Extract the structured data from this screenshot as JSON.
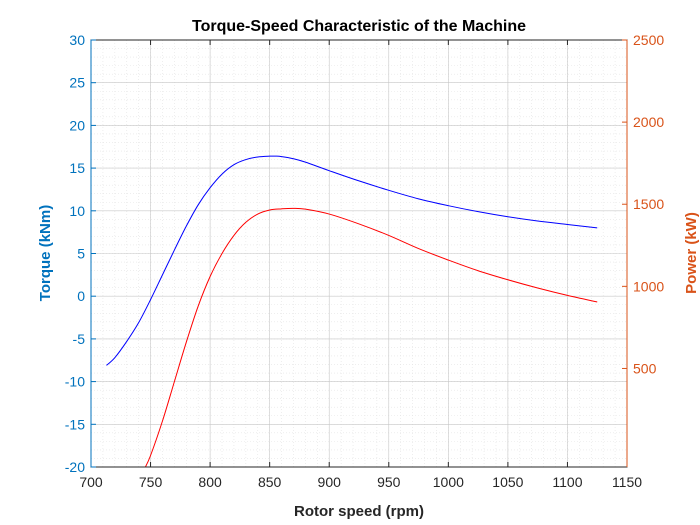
{
  "chart_data": {
    "type": "line",
    "title": "Torque-Speed Characteristic of the Machine",
    "xlabel": "Rotor speed (rpm)",
    "ylabel_left": "Torque (kNm)",
    "ylabel_right": "Power (kW)",
    "xlim": [
      700,
      1150
    ],
    "ylim_left": [
      -20,
      30
    ],
    "ylim_right": [
      -100,
      2500
    ],
    "x_ticks": [
      "700",
      "750",
      "800",
      "850",
      "900",
      "950",
      "1000",
      "1050",
      "1100",
      "1150"
    ],
    "y_left_ticks": [
      "-20",
      "-15",
      "-10",
      "-5",
      "0",
      "5",
      "10",
      "15",
      "20",
      "25",
      "30"
    ],
    "y_right_ticks": [
      "500",
      "1000",
      "1500",
      "2000",
      "2500"
    ],
    "grid": true,
    "colors": {
      "left_axis": "#0072BD",
      "right_axis": "#D95319",
      "torque_line": "#0000FF",
      "power_line": "#FF0000",
      "grid": "#c8c8c8"
    },
    "series": [
      {
        "axis": "left",
        "x": [
          713,
          720,
          730,
          740,
          750,
          760,
          770,
          780,
          790,
          800,
          810,
          820,
          830,
          840,
          850,
          855,
          860,
          870,
          880,
          900,
          925,
          950,
          975,
          1000,
          1025,
          1050,
          1075,
          1100,
          1125
        ],
        "y": [
          -8.1,
          -7.2,
          -5.3,
          -3.1,
          -0.4,
          2.5,
          5.4,
          8.2,
          10.7,
          12.7,
          14.3,
          15.4,
          16.0,
          16.3,
          16.4,
          16.4,
          16.35,
          16.1,
          15.7,
          14.7,
          13.5,
          12.4,
          11.4,
          10.6,
          9.9,
          9.3,
          8.8,
          8.4,
          8.0
        ]
      },
      {
        "axis": "right",
        "x": [
          745,
          750,
          760,
          770,
          780,
          790,
          800,
          810,
          820,
          830,
          840,
          850,
          860,
          870,
          880,
          900,
          925,
          950,
          975,
          1000,
          1025,
          1050,
          1075,
          1100,
          1125
        ],
        "y": [
          -110,
          -30,
          180,
          420,
          660,
          880,
          1060,
          1200,
          1310,
          1390,
          1440,
          1465,
          1472,
          1475,
          1470,
          1440,
          1380,
          1310,
          1230,
          1160,
          1095,
          1040,
          990,
          945,
          905
        ]
      }
    ]
  }
}
